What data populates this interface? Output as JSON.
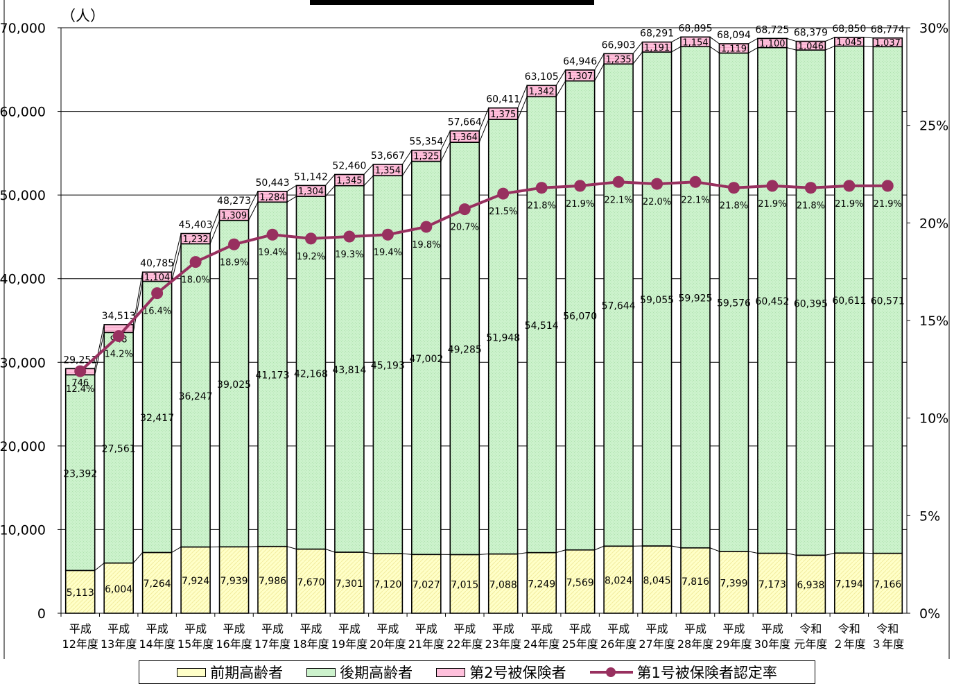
{
  "chart_data": {
    "type": "bar",
    "stacked": true,
    "y_unit": "（人）",
    "categories": [
      [
        "平成",
        "12年度"
      ],
      [
        "平成",
        "13年度"
      ],
      [
        "平成",
        "14年度"
      ],
      [
        "平成",
        "15年度"
      ],
      [
        "平成",
        "16年度"
      ],
      [
        "平成",
        "17年度"
      ],
      [
        "平成",
        "18年度"
      ],
      [
        "平成",
        "19年度"
      ],
      [
        "平成",
        "20年度"
      ],
      [
        "平成",
        "21年度"
      ],
      [
        "平成",
        "22年度"
      ],
      [
        "平成",
        "23年度"
      ],
      [
        "平成",
        "24年度"
      ],
      [
        "平成",
        "25年度"
      ],
      [
        "平成",
        "26年度"
      ],
      [
        "平成",
        "27年度"
      ],
      [
        "平成",
        "28年度"
      ],
      [
        "平成",
        "29年度"
      ],
      [
        "平成",
        "30年度"
      ],
      [
        "令和",
        "元年度"
      ],
      [
        "令和",
        "２年度"
      ],
      [
        "令和",
        "３年度"
      ]
    ],
    "series": [
      {
        "name": "前期高齢者",
        "color": "#ffffc8",
        "values": [
          5113,
          6004,
          7264,
          7924,
          7939,
          7986,
          7670,
          7301,
          7120,
          7027,
          7015,
          7088,
          7249,
          7569,
          8024,
          8045,
          7816,
          7399,
          7173,
          6938,
          7194,
          7166
        ]
      },
      {
        "name": "後期高齢者",
        "color": "#ccf2cc",
        "values": [
          23392,
          27561,
          32417,
          36247,
          39025,
          41173,
          42168,
          43814,
          45193,
          47002,
          49285,
          51948,
          54514,
          56070,
          57644,
          59055,
          59925,
          59576,
          60452,
          60395,
          60611,
          60571
        ]
      },
      {
        "name": "第2号被保険者",
        "color": "#ffc0dc",
        "values": [
          746,
          948,
          1104,
          1232,
          1309,
          1284,
          1304,
          1345,
          1354,
          1325,
          1364,
          1375,
          1342,
          1307,
          1235,
          1191,
          1154,
          1119,
          1100,
          1046,
          1045,
          1037
        ]
      }
    ],
    "totals": [
      29251,
      34513,
      40785,
      45403,
      48273,
      50443,
      51142,
      52460,
      53667,
      55354,
      57664,
      60411,
      63105,
      64946,
      66903,
      68291,
      68895,
      68094,
      68725,
      68379,
      68850,
      68774
    ],
    "line": {
      "name": "第1号被保険者認定率",
      "color": "#98305f",
      "values": [
        12.4,
        14.2,
        16.4,
        18.0,
        18.9,
        19.4,
        19.2,
        19.3,
        19.4,
        19.8,
        20.7,
        21.5,
        21.8,
        21.9,
        22.1,
        22.0,
        22.1,
        21.8,
        21.9,
        21.8,
        21.9,
        21.9
      ]
    },
    "ylim": [
      0,
      70000
    ],
    "yticks": [
      0,
      10000,
      20000,
      30000,
      40000,
      50000,
      60000,
      70000
    ],
    "y2lim": [
      0,
      30
    ],
    "y2ticks": [
      0,
      5,
      10,
      15,
      20,
      25,
      30
    ],
    "grid": true,
    "legend_position": "bottom"
  }
}
